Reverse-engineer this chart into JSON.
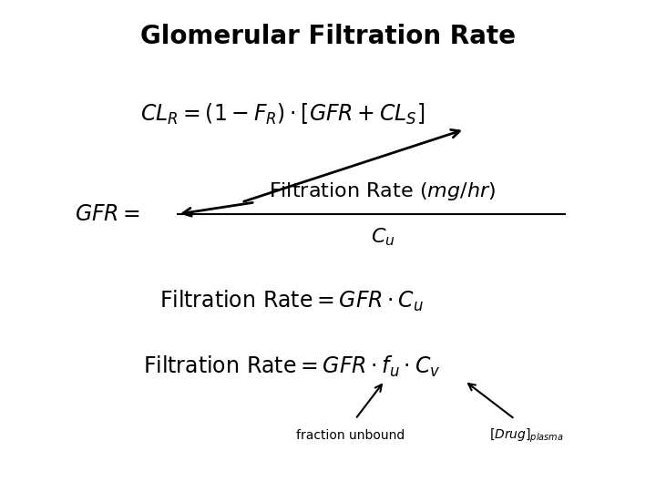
{
  "title": "Glomerular Filtration Rate",
  "title_fontsize": 20,
  "bg_color": "#ffffff",
  "math_fontsize": 17,
  "small_fontsize": 10
}
